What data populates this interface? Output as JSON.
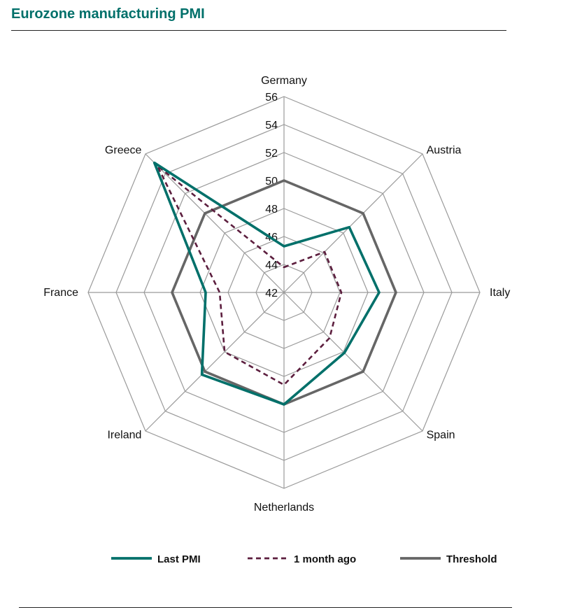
{
  "chart_data": {
    "type": "radar",
    "title": "Eurozone manufacturing PMI",
    "categories": [
      "Germany",
      "Austria",
      "Italy",
      "Spain",
      "Netherlands",
      "Ireland",
      "France",
      "Greece"
    ],
    "rlim": [
      42,
      56
    ],
    "ticks": [
      42,
      44,
      46,
      48,
      50,
      52,
      54,
      56
    ],
    "series": [
      {
        "name": "Last PMI",
        "values": [
          45.3,
          48.6,
          48.8,
          48.1,
          50.0,
          50.3,
          47.6,
          55.1
        ],
        "color": "#00706a",
        "dash": "solid"
      },
      {
        "name": "1 month ago",
        "values": [
          43.8,
          46.1,
          46.1,
          46.6,
          48.6,
          48.0,
          46.6,
          54.8
        ],
        "color": "#5c1e3e",
        "dash": "dashed"
      },
      {
        "name": "Threshold",
        "values": [
          50,
          50,
          50,
          50,
          50,
          50,
          50,
          50
        ],
        "color": "#666666",
        "dash": "solid"
      }
    ],
    "legend": "bottom"
  }
}
